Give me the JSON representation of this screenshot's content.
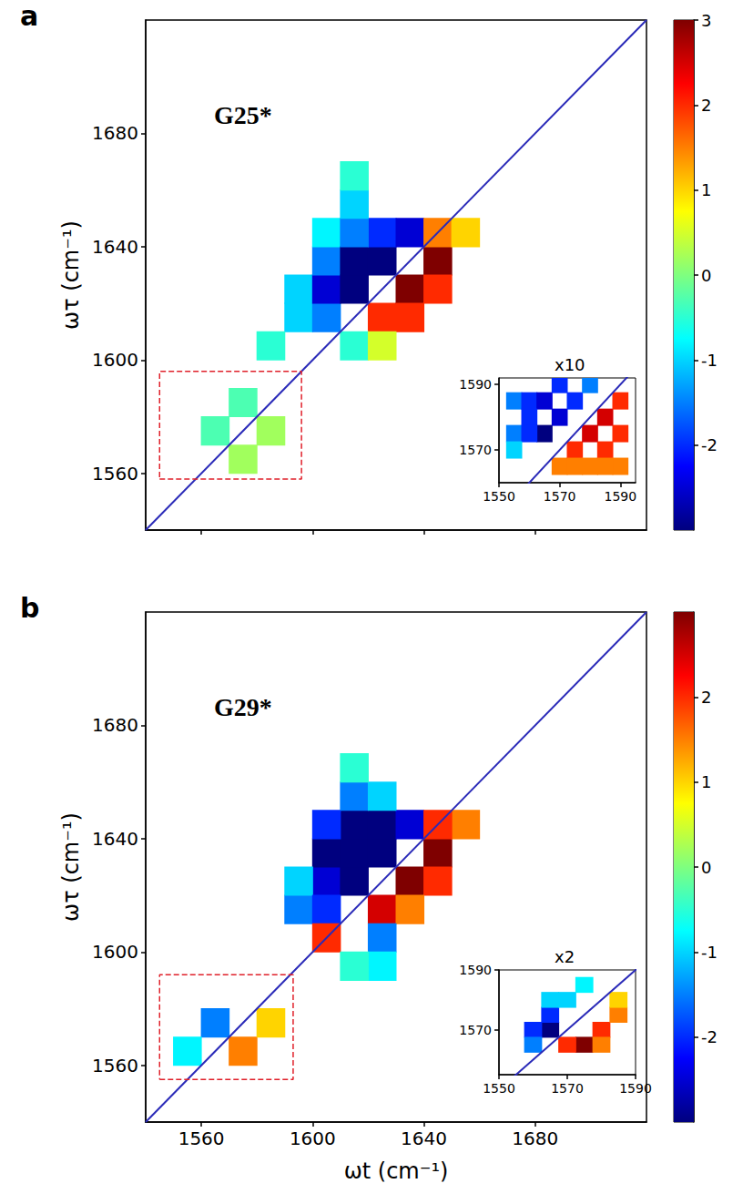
{
  "chart_data": [
    {
      "type": "heatmap",
      "panel": "a",
      "title": "G25*",
      "y_label": "ωτ (cm⁻¹)",
      "tick_labels": "y",
      "xlim": [
        1540,
        1720
      ],
      "ylim": [
        1540,
        1720
      ],
      "xticks": [
        1560,
        1600,
        1640,
        1680
      ],
      "yticks": [
        1560,
        1600,
        1640,
        1680
      ],
      "cell_width": 10,
      "cells": [
        [
          1595,
          1615,
          -1
        ],
        [
          1595,
          1625,
          -1
        ],
        [
          1605,
          1615,
          -1.5
        ],
        [
          1605,
          1625,
          -2.5
        ],
        [
          1605,
          1635,
          -1.5
        ],
        [
          1605,
          1645,
          -0.8
        ],
        [
          1615,
          1625,
          -4
        ],
        [
          1615,
          1635,
          -4
        ],
        [
          1625,
          1635,
          -4
        ],
        [
          1625,
          1645,
          -2
        ],
        [
          1615,
          1645,
          -1.5
        ],
        [
          1635,
          1645,
          -2.5
        ],
        [
          1615,
          1655,
          -1
        ],
        [
          1615,
          1665,
          -0.5
        ],
        [
          1585,
          1605,
          -0.5
        ],
        [
          1625,
          1615,
          2
        ],
        [
          1635,
          1625,
          4
        ],
        [
          1645,
          1635,
          3
        ],
        [
          1645,
          1625,
          2
        ],
        [
          1635,
          1615,
          2
        ],
        [
          1645,
          1645,
          1.5
        ],
        [
          1655,
          1645,
          1
        ],
        [
          1615,
          1605,
          -0.5
        ],
        [
          1625,
          1605,
          0.5
        ],
        [
          1565,
          1575,
          -0.3
        ],
        [
          1575,
          1585,
          -0.3
        ],
        [
          1575,
          1565,
          0.2
        ],
        [
          1585,
          1575,
          0.2
        ]
      ],
      "colorbar": {
        "range": [
          -3,
          3
        ],
        "ticks": [
          -2,
          -1,
          0,
          1,
          2,
          3
        ]
      },
      "box": {
        "x": [
          1545,
          1596
        ],
        "y": [
          1558,
          1596
        ]
      },
      "inset": {
        "label": "x10",
        "xlim": [
          1550,
          1595
        ],
        "ylim": [
          1560,
          1592
        ],
        "xticks": [
          1550,
          1570,
          1590
        ],
        "yticks": [
          1570,
          1590
        ],
        "cell_width": 5,
        "cells": [
          [
            1555,
            1585,
            -1.5
          ],
          [
            1560,
            1585,
            -2
          ],
          [
            1565,
            1585,
            -2.5
          ],
          [
            1560,
            1580,
            -2
          ],
          [
            1565,
            1575,
            -3
          ],
          [
            1570,
            1580,
            -2.5
          ],
          [
            1575,
            1585,
            -2
          ],
          [
            1555,
            1575,
            -1.5
          ],
          [
            1560,
            1575,
            -2
          ],
          [
            1555,
            1570,
            -1
          ],
          [
            1580,
            1590,
            -1.5
          ],
          [
            1570,
            1590,
            -2
          ],
          [
            1570,
            1565,
            1.5
          ],
          [
            1575,
            1570,
            2
          ],
          [
            1580,
            1575,
            2.5
          ],
          [
            1585,
            1580,
            2.5
          ],
          [
            1590,
            1585,
            2
          ],
          [
            1580,
            1565,
            1.5
          ],
          [
            1585,
            1570,
            2
          ],
          [
            1590,
            1575,
            2
          ],
          [
            1575,
            1565,
            1.5
          ],
          [
            1590,
            1565,
            1.5
          ],
          [
            1585,
            1565,
            1.5
          ]
        ]
      }
    },
    {
      "type": "heatmap",
      "panel": "b",
      "title": "G29*",
      "x_label": "ωt (cm⁻¹)",
      "y_label": "ωτ (cm⁻¹)",
      "xlim": [
        1540,
        1720
      ],
      "ylim": [
        1540,
        1720
      ],
      "xticks": [
        1560,
        1600,
        1640,
        1680
      ],
      "yticks": [
        1560,
        1600,
        1640,
        1680
      ],
      "cell_width": 10,
      "cells": [
        [
          1605,
          1625,
          -2.5
        ],
        [
          1605,
          1635,
          -3
        ],
        [
          1615,
          1625,
          -4
        ],
        [
          1615,
          1635,
          -4
        ],
        [
          1615,
          1645,
          -4
        ],
        [
          1625,
          1635,
          -4
        ],
        [
          1625,
          1645,
          -3
        ],
        [
          1605,
          1645,
          -2
        ],
        [
          1595,
          1615,
          -1.5
        ],
        [
          1595,
          1625,
          -1
        ],
        [
          1635,
          1645,
          -2.5
        ],
        [
          1615,
          1655,
          -1.5
        ],
        [
          1625,
          1655,
          -1
        ],
        [
          1615,
          1665,
          -0.5
        ],
        [
          1605,
          1615,
          -2
        ],
        [
          1625,
          1615,
          2.5
        ],
        [
          1635,
          1625,
          4
        ],
        [
          1645,
          1635,
          4
        ],
        [
          1645,
          1625,
          2
        ],
        [
          1635,
          1615,
          1.5
        ],
        [
          1655,
          1645,
          1.5
        ],
        [
          1645,
          1645,
          2
        ],
        [
          1605,
          1605,
          2
        ],
        [
          1625,
          1605,
          -1.5
        ],
        [
          1625,
          1595,
          -0.8
        ],
        [
          1615,
          1595,
          -0.5
        ],
        [
          1565,
          1575,
          -1.5
        ],
        [
          1555,
          1565,
          -0.8
        ],
        [
          1575,
          1565,
          1.5
        ],
        [
          1585,
          1575,
          1
        ]
      ],
      "colorbar": {
        "range": [
          -3,
          3
        ],
        "ticks": [
          -2,
          -1,
          0,
          1,
          2
        ]
      },
      "box": {
        "x": [
          1545,
          1593
        ],
        "y": [
          1555,
          1592
        ]
      },
      "inset": {
        "label": "x2",
        "xlim": [
          1550,
          1590
        ],
        "ylim": [
          1555,
          1590
        ],
        "xticks": [
          1550,
          1570,
          1590
        ],
        "yticks": [
          1570,
          1590
        ],
        "cell_width": 5,
        "cells": [
          [
            1565,
            1570,
            -4
          ],
          [
            1560,
            1570,
            -2
          ],
          [
            1565,
            1575,
            -2
          ],
          [
            1560,
            1565,
            -1.5
          ],
          [
            1570,
            1580,
            -1
          ],
          [
            1575,
            1585,
            -0.8
          ],
          [
            1565,
            1580,
            -1
          ],
          [
            1575,
            1565,
            4
          ],
          [
            1570,
            1565,
            2
          ],
          [
            1580,
            1570,
            2
          ],
          [
            1585,
            1575,
            1.5
          ],
          [
            1580,
            1565,
            1.5
          ],
          [
            1585,
            1580,
            1
          ]
        ]
      }
    }
  ]
}
